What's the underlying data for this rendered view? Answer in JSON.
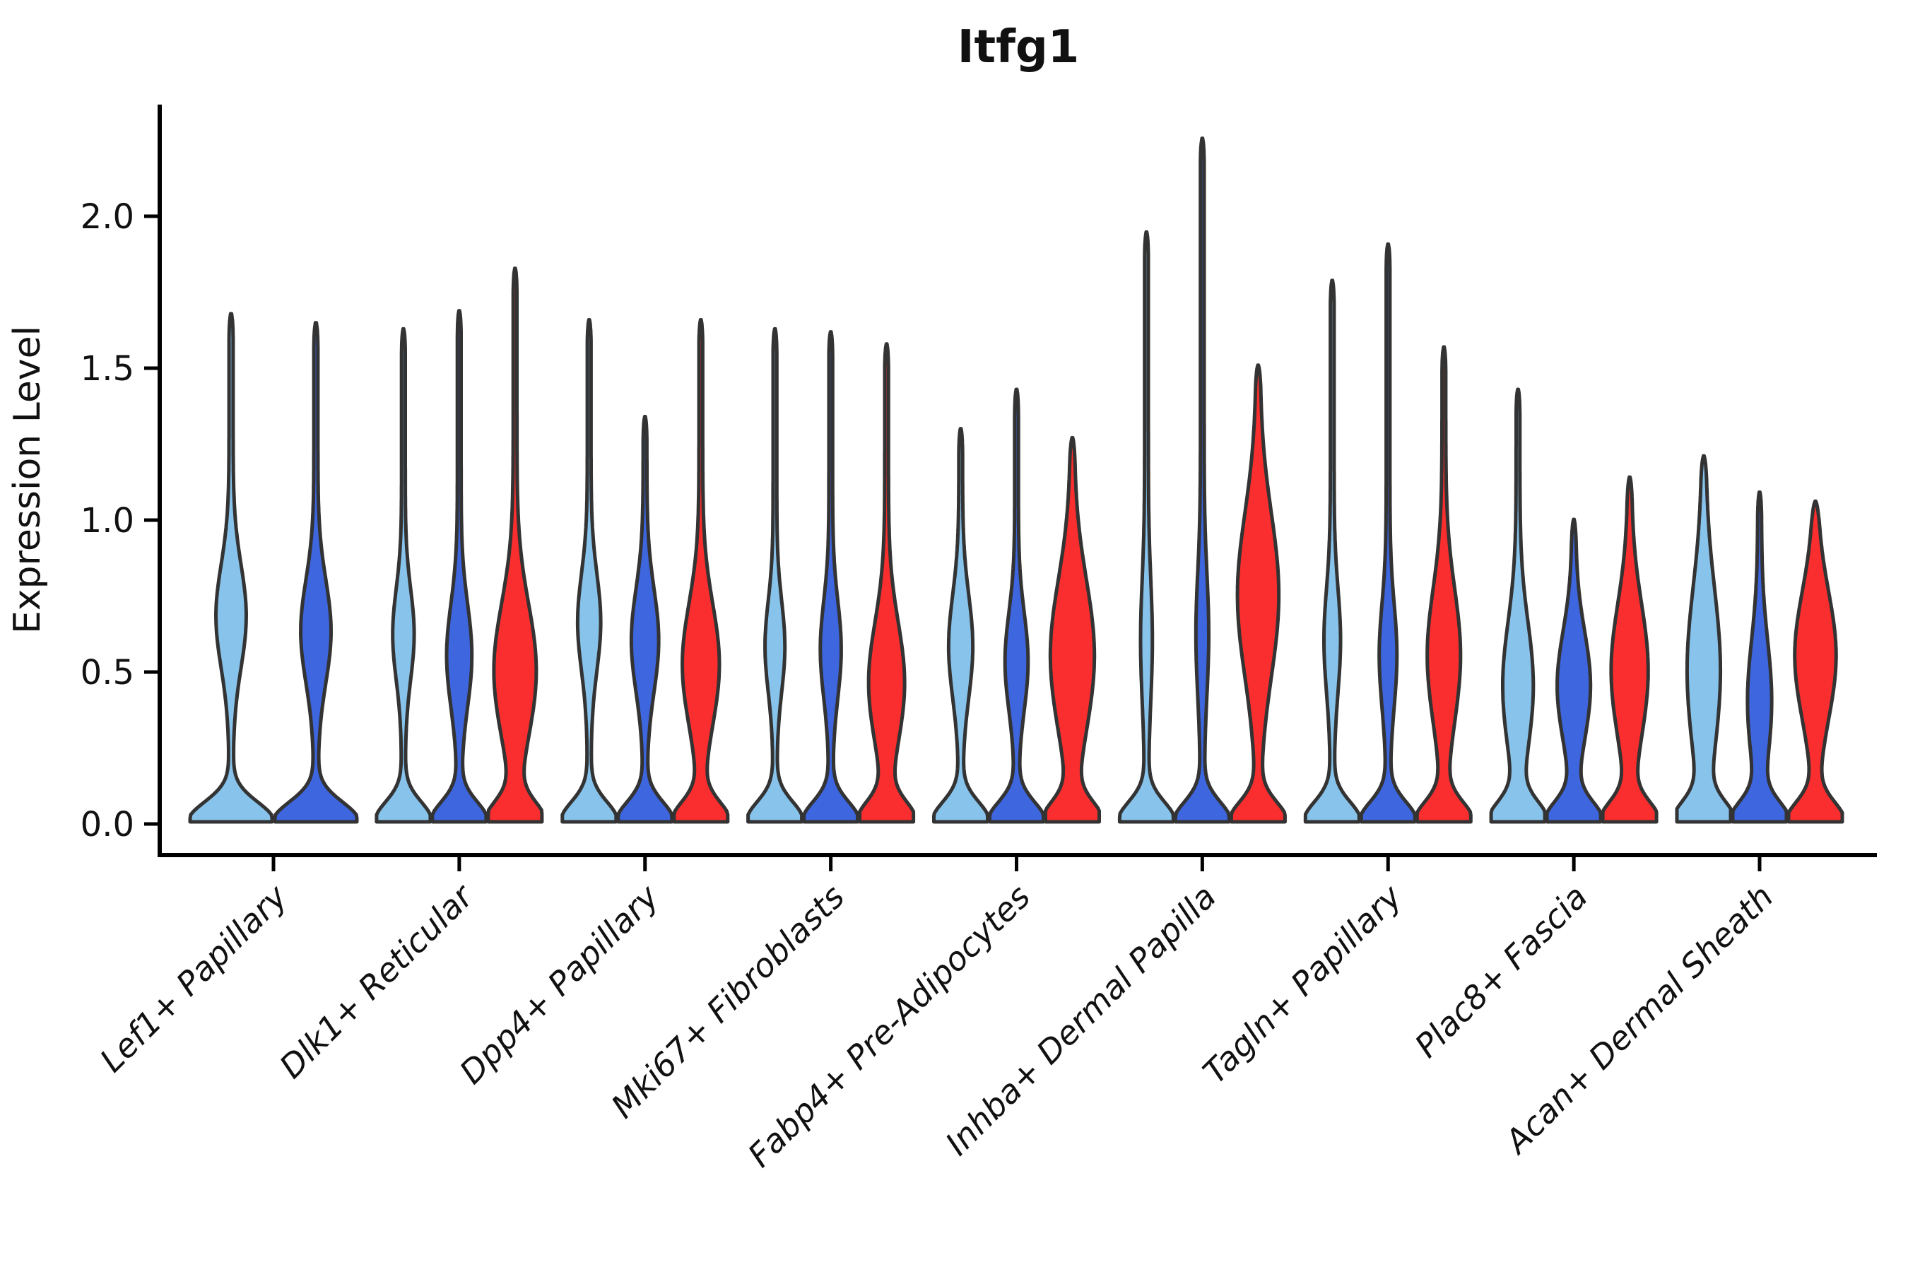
{
  "title": "Itfg1",
  "axes": {
    "y_label": "Expression Level",
    "y_tick_labels": [
      "0.0",
      "0.5",
      "1.0",
      "1.5",
      "2.0"
    ],
    "y_tick_values": [
      0.0,
      0.5,
      1.0,
      1.5,
      2.0
    ]
  },
  "colors": {
    "light_blue": "#87C3EB",
    "royal_blue": "#3D66DF",
    "red": "#FA2E2E",
    "violin_outline": "#333333",
    "axis": "#000000",
    "background": "#FFFFFF"
  },
  "chart_data": {
    "type": "violin",
    "title": "Itfg1",
    "xlabel": "",
    "ylabel": "Expression Level",
    "ylim": [
      0,
      2.35
    ],
    "y_ticks": [
      0.0,
      0.5,
      1.0,
      1.5,
      2.0
    ],
    "grid": false,
    "legend": "none",
    "categories": [
      "Lef1+ Papillary",
      "Dlk1+ Reticular",
      "Dpp4+ Papillary",
      "Mki67+ Fibroblasts",
      "Fabp4+ Pre-Adipocytes",
      "Inhba+ Dermal Papilla",
      "Tagln+ Papillary",
      "Plac8+ Fascia",
      "Acan+ Dermal Sheath"
    ],
    "series": [
      {
        "name": "light_blue",
        "color": "#87C3EB"
      },
      {
        "name": "royal_blue",
        "color": "#3D66DF"
      },
      {
        "name": "red",
        "color": "#FA2E2E"
      }
    ],
    "violins": [
      {
        "category_index": 0,
        "series_index": 0,
        "max_expression": 1.68,
        "bulge_center": 0.68,
        "bulge_sigma": 0.17,
        "bulge_amp": 0.32
      },
      {
        "category_index": 0,
        "series_index": 1,
        "max_expression": 1.65,
        "bulge_center": 0.63,
        "bulge_sigma": 0.17,
        "bulge_amp": 0.32
      },
      {
        "category_index": 1,
        "series_index": 0,
        "max_expression": 1.63,
        "bulge_center": 0.62,
        "bulge_sigma": 0.15,
        "bulge_amp": 0.33
      },
      {
        "category_index": 1,
        "series_index": 1,
        "max_expression": 1.69,
        "bulge_center": 0.55,
        "bulge_sigma": 0.17,
        "bulge_amp": 0.4
      },
      {
        "category_index": 1,
        "series_index": 2,
        "max_expression": 1.83,
        "bulge_center": 0.5,
        "bulge_sigma": 0.22,
        "bulge_amp": 0.72
      },
      {
        "category_index": 2,
        "series_index": 0,
        "max_expression": 1.66,
        "bulge_center": 0.66,
        "bulge_sigma": 0.16,
        "bulge_amp": 0.36
      },
      {
        "category_index": 2,
        "series_index": 1,
        "max_expression": 1.34,
        "bulge_center": 0.6,
        "bulge_sigma": 0.17,
        "bulge_amp": 0.44
      },
      {
        "category_index": 2,
        "series_index": 2,
        "max_expression": 1.66,
        "bulge_center": 0.52,
        "bulge_sigma": 0.2,
        "bulge_amp": 0.62
      },
      {
        "category_index": 3,
        "series_index": 0,
        "max_expression": 1.63,
        "bulge_center": 0.58,
        "bulge_sigma": 0.15,
        "bulge_amp": 0.3
      },
      {
        "category_index": 3,
        "series_index": 1,
        "max_expression": 1.62,
        "bulge_center": 0.57,
        "bulge_sigma": 0.16,
        "bulge_amp": 0.32
      },
      {
        "category_index": 3,
        "series_index": 2,
        "max_expression": 1.58,
        "bulge_center": 0.46,
        "bulge_sigma": 0.2,
        "bulge_amp": 0.6
      },
      {
        "category_index": 4,
        "series_index": 0,
        "max_expression": 1.3,
        "bulge_center": 0.58,
        "bulge_sigma": 0.17,
        "bulge_amp": 0.38
      },
      {
        "category_index": 4,
        "series_index": 1,
        "max_expression": 1.43,
        "bulge_center": 0.53,
        "bulge_sigma": 0.16,
        "bulge_amp": 0.36
      },
      {
        "category_index": 4,
        "series_index": 2,
        "max_expression": 1.27,
        "bulge_center": 0.55,
        "bulge_sigma": 0.25,
        "bulge_amp": 0.75
      },
      {
        "category_index": 5,
        "series_index": 0,
        "max_expression": 1.95,
        "bulge_center": 0.6,
        "bulge_sigma": 0.2,
        "bulge_amp": 0.15
      },
      {
        "category_index": 5,
        "series_index": 1,
        "max_expression": 2.26,
        "bulge_center": 0.62,
        "bulge_sigma": 0.2,
        "bulge_amp": 0.17
      },
      {
        "category_index": 5,
        "series_index": 2,
        "max_expression": 1.51,
        "bulge_center": 0.75,
        "bulge_sigma": 0.27,
        "bulge_amp": 0.7
      },
      {
        "category_index": 6,
        "series_index": 0,
        "max_expression": 1.79,
        "bulge_center": 0.6,
        "bulge_sigma": 0.17,
        "bulge_amp": 0.24
      },
      {
        "category_index": 6,
        "series_index": 1,
        "max_expression": 1.91,
        "bulge_center": 0.55,
        "bulge_sigma": 0.17,
        "bulge_amp": 0.26
      },
      {
        "category_index": 6,
        "series_index": 2,
        "max_expression": 1.57,
        "bulge_center": 0.55,
        "bulge_sigma": 0.22,
        "bulge_amp": 0.55
      },
      {
        "category_index": 7,
        "series_index": 0,
        "max_expression": 1.43,
        "bulge_center": 0.45,
        "bulge_sigma": 0.21,
        "bulge_amp": 0.5
      },
      {
        "category_index": 7,
        "series_index": 1,
        "max_expression": 1.0,
        "bulge_center": 0.45,
        "bulge_sigma": 0.18,
        "bulge_amp": 0.55
      },
      {
        "category_index": 7,
        "series_index": 2,
        "max_expression": 1.14,
        "bulge_center": 0.5,
        "bulge_sigma": 0.22,
        "bulge_amp": 0.62
      },
      {
        "category_index": 8,
        "series_index": 0,
        "max_expression": 1.21,
        "bulge_center": 0.5,
        "bulge_sigma": 0.27,
        "bulge_amp": 0.55
      },
      {
        "category_index": 8,
        "series_index": 1,
        "max_expression": 1.09,
        "bulge_center": 0.4,
        "bulge_sigma": 0.2,
        "bulge_amp": 0.38
      },
      {
        "category_index": 8,
        "series_index": 2,
        "max_expression": 1.06,
        "bulge_center": 0.55,
        "bulge_sigma": 0.21,
        "bulge_amp": 0.7
      }
    ]
  }
}
